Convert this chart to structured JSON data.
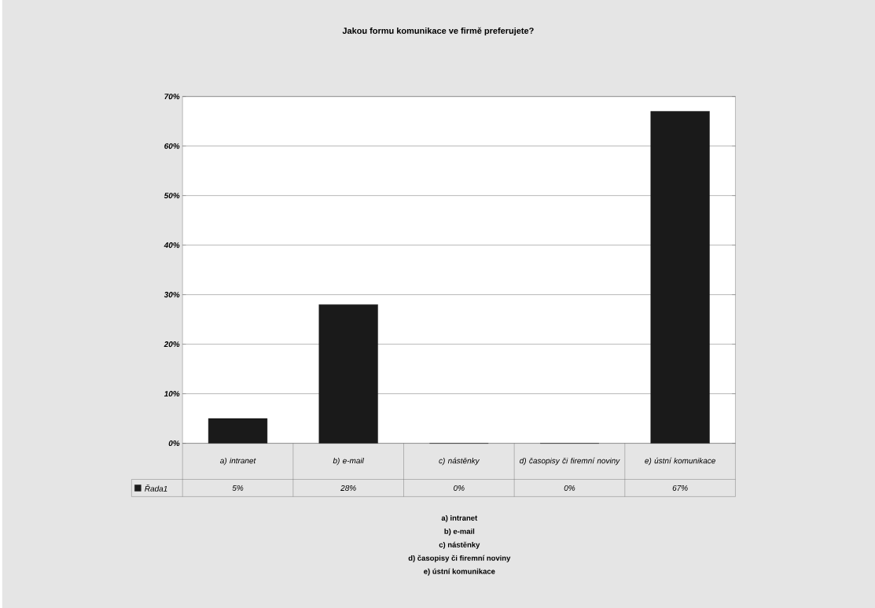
{
  "chart_data": {
    "type": "bar",
    "title": "Jakou formu komunikace ve firmě preferujete?",
    "categories": [
      "a) intranet",
      "b) e-mail",
      "c) nástěnky",
      "d) časopisy či firemní noviny",
      "e) ústní komunikace"
    ],
    "series": [
      {
        "name": "Řada1",
        "color": "#1a1a1a",
        "values": [
          5,
          28,
          0,
          0,
          67
        ],
        "value_labels": [
          "5%",
          "28%",
          "0%",
          "0%",
          "67%"
        ]
      }
    ],
    "ylim": [
      0,
      70
    ],
    "yticks": [
      {
        "value": 0,
        "label": "0%"
      },
      {
        "value": 10,
        "label": "10%"
      },
      {
        "value": 20,
        "label": "20%"
      },
      {
        "value": 30,
        "label": "30%"
      },
      {
        "value": 40,
        "label": "40%"
      },
      {
        "value": 50,
        "label": "50%"
      },
      {
        "value": 60,
        "label": "60%"
      },
      {
        "value": 70,
        "label": "70%"
      }
    ],
    "grid": "y",
    "legend": "bottom",
    "annotations": [
      "a) intranet",
      "b) e-mail",
      "c) nástěnky",
      "d) časopisy či firemní noviny",
      "e) ústní komunikace"
    ]
  }
}
